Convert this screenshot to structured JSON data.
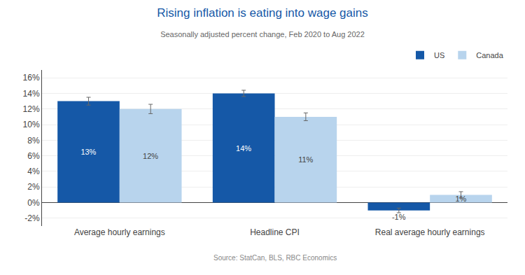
{
  "chart_data": {
    "type": "bar",
    "title": "Rising inflation is eating into wage gains",
    "subtitle": "Seasonally adjusted percent change, Feb 2020 to Aug 2022",
    "annotations": [
      "Source: StatCan, BLS, RBC Economics"
    ],
    "categories": [
      "Average hourly earnings",
      "Headline CPI",
      "Real average hourly earnings"
    ],
    "series": [
      {
        "name": "US",
        "color": "#1558a7",
        "values": [
          13,
          14,
          -1
        ],
        "errors": [
          0.5,
          0.4,
          0.3
        ],
        "value_labels": [
          "13%",
          "14%",
          "-1%"
        ]
      },
      {
        "name": "Canada",
        "color": "#b8d4ed",
        "values": [
          12,
          11,
          1
        ],
        "errors": [
          0.6,
          0.5,
          0.4
        ],
        "value_labels": [
          "12%",
          "11%",
          "1%"
        ]
      }
    ],
    "ylim": [
      -3,
      17
    ],
    "yticks": [
      {
        "value": -2,
        "label": "-2%"
      },
      {
        "value": 0,
        "label": "0%"
      },
      {
        "value": 2,
        "label": "2%"
      },
      {
        "value": 4,
        "label": "4%"
      },
      {
        "value": 6,
        "label": "6%"
      },
      {
        "value": 8,
        "label": "8%"
      },
      {
        "value": 10,
        "label": "10%"
      },
      {
        "value": 12,
        "label": "12%"
      },
      {
        "value": 14,
        "label": "14%"
      },
      {
        "value": 16,
        "label": "16%"
      }
    ],
    "grid": true,
    "legend": "upper right",
    "data_labels": true
  }
}
